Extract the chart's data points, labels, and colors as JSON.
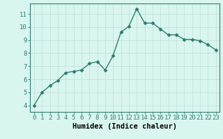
{
  "x": [
    0,
    1,
    2,
    3,
    4,
    5,
    6,
    7,
    8,
    9,
    10,
    11,
    12,
    13,
    14,
    15,
    16,
    17,
    18,
    19,
    20,
    21,
    22,
    23
  ],
  "y": [
    4.0,
    5.0,
    5.5,
    5.9,
    6.5,
    6.6,
    6.7,
    7.2,
    7.35,
    6.7,
    7.8,
    9.6,
    10.05,
    11.4,
    10.3,
    10.3,
    9.85,
    9.4,
    9.4,
    9.05,
    9.05,
    8.95,
    8.65,
    8.25
  ],
  "line_color": "#2e7d6e",
  "marker": "D",
  "markersize": 2.5,
  "linewidth": 1.0,
  "bg_color": "#d9f5f0",
  "grid_color": "#c0ddd8",
  "xlabel": "Humidex (Indice chaleur)",
  "xlabel_fontsize": 7.5,
  "tick_fontsize": 6.5,
  "xlim": [
    -0.5,
    23.5
  ],
  "ylim": [
    3.5,
    11.8
  ],
  "yticks": [
    4,
    5,
    6,
    7,
    8,
    9,
    10,
    11
  ],
  "xticks": [
    0,
    1,
    2,
    3,
    4,
    5,
    6,
    7,
    8,
    9,
    10,
    11,
    12,
    13,
    14,
    15,
    16,
    17,
    18,
    19,
    20,
    21,
    22,
    23
  ]
}
